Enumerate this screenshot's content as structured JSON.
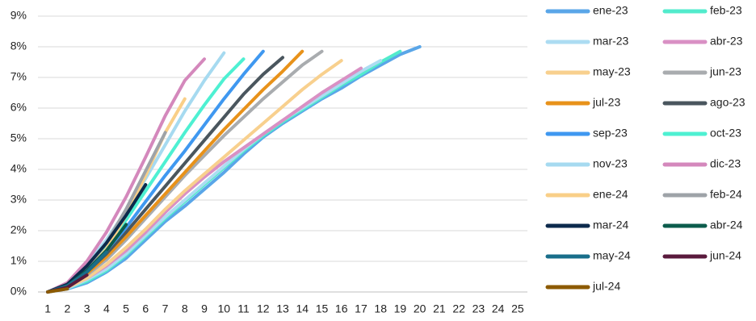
{
  "chart_data": {
    "type": "line",
    "categories": [
      1,
      2,
      3,
      4,
      5,
      6,
      7,
      8,
      9,
      10,
      11,
      12,
      13,
      14,
      15,
      16,
      17,
      18,
      19,
      20,
      21,
      22,
      23,
      24,
      25
    ],
    "ylim": [
      0,
      9
    ],
    "yticks": [
      {
        "value": 0,
        "label": "0%"
      },
      {
        "value": 1,
        "label": "1%"
      },
      {
        "value": 2,
        "label": "2%"
      },
      {
        "value": 3,
        "label": "3%"
      },
      {
        "value": 4,
        "label": "4%"
      },
      {
        "value": 5,
        "label": "5%"
      },
      {
        "value": 6,
        "label": "6%"
      },
      {
        "value": 7,
        "label": "7%"
      },
      {
        "value": 8,
        "label": "8%"
      },
      {
        "value": 9,
        "label": "9%"
      }
    ],
    "grid": true,
    "legend": "right",
    "series": [
      {
        "name": "ene-23",
        "color": "#5aa6e8",
        "values": [
          0,
          0.1,
          0.3,
          0.65,
          1.1,
          1.7,
          2.3,
          2.8,
          3.35,
          3.9,
          4.5,
          5.05,
          5.5,
          5.9,
          6.3,
          6.65,
          7.05,
          7.4,
          7.75,
          8.0,
          null,
          null,
          null,
          null,
          null
        ]
      },
      {
        "name": "feb-23",
        "color": "#52ebcc",
        "values": [
          0,
          0.12,
          0.35,
          0.7,
          1.2,
          1.8,
          2.4,
          2.95,
          3.5,
          4.05,
          4.6,
          5.1,
          5.55,
          5.95,
          6.35,
          6.75,
          7.1,
          7.5,
          7.85,
          null,
          null,
          null,
          null,
          null,
          null
        ]
      },
      {
        "name": "mar-23",
        "color": "#acdcf2",
        "values": [
          0,
          0.12,
          0.4,
          0.75,
          1.25,
          1.85,
          2.45,
          3.0,
          3.55,
          4.1,
          4.65,
          5.15,
          5.6,
          6.0,
          6.4,
          6.8,
          7.2,
          7.55,
          null,
          null,
          null,
          null,
          null,
          null,
          null
        ]
      },
      {
        "name": "abr-23",
        "color": "#d990c4",
        "values": [
          0,
          0.15,
          0.45,
          0.85,
          1.35,
          1.95,
          2.6,
          3.2,
          3.75,
          4.25,
          4.7,
          5.15,
          5.6,
          6.05,
          6.5,
          6.9,
          7.3,
          null,
          null,
          null,
          null,
          null,
          null,
          null,
          null
        ]
      },
      {
        "name": "may-23",
        "color": "#f8d08e",
        "values": [
          0,
          0.15,
          0.45,
          0.9,
          1.45,
          2.05,
          2.7,
          3.3,
          3.85,
          4.4,
          4.95,
          5.5,
          6.05,
          6.6,
          7.1,
          7.55,
          null,
          null,
          null,
          null,
          null,
          null,
          null,
          null,
          null
        ]
      },
      {
        "name": "jun-23",
        "color": "#a9acaf",
        "values": [
          0,
          0.2,
          0.55,
          1.05,
          1.7,
          2.4,
          3.1,
          3.8,
          4.45,
          5.1,
          5.7,
          6.3,
          6.85,
          7.4,
          7.85,
          null,
          null,
          null,
          null,
          null,
          null,
          null,
          null,
          null,
          null
        ]
      },
      {
        "name": "jul-23",
        "color": "#e8921a",
        "values": [
          0,
          0.2,
          0.6,
          1.15,
          1.8,
          2.5,
          3.2,
          3.9,
          4.6,
          5.3,
          5.95,
          6.6,
          7.2,
          7.85,
          null,
          null,
          null,
          null,
          null,
          null,
          null,
          null,
          null,
          null,
          null
        ]
      },
      {
        "name": "ago-23",
        "color": "#4a565e",
        "values": [
          0,
          0.2,
          0.65,
          1.25,
          1.95,
          2.7,
          3.45,
          4.2,
          4.95,
          5.7,
          6.45,
          7.1,
          7.65,
          null,
          null,
          null,
          null,
          null,
          null,
          null,
          null,
          null,
          null,
          null,
          null
        ]
      },
      {
        "name": "sep-23",
        "color": "#3f98f0",
        "values": [
          0,
          0.22,
          0.7,
          1.35,
          2.1,
          2.95,
          3.8,
          4.6,
          5.45,
          6.3,
          7.1,
          7.85,
          null,
          null,
          null,
          null,
          null,
          null,
          null,
          null,
          null,
          null,
          null,
          null,
          null
        ]
      },
      {
        "name": "oct-23",
        "color": "#4ef0d2",
        "values": [
          0,
          0.25,
          0.8,
          1.5,
          2.35,
          3.3,
          4.25,
          5.2,
          6.1,
          6.95,
          7.6,
          null,
          null,
          null,
          null,
          null,
          null,
          null,
          null,
          null,
          null,
          null,
          null,
          null,
          null
        ]
      },
      {
        "name": "nov-23",
        "color": "#a6daf0",
        "values": [
          0,
          0.28,
          0.9,
          1.7,
          2.65,
          3.7,
          4.8,
          5.9,
          6.9,
          7.8,
          null,
          null,
          null,
          null,
          null,
          null,
          null,
          null,
          null,
          null,
          null,
          null,
          null,
          null,
          null
        ]
      },
      {
        "name": "dic-23",
        "color": "#d488bc",
        "values": [
          0,
          0.3,
          1.0,
          1.95,
          3.1,
          4.4,
          5.75,
          6.9,
          7.6,
          null,
          null,
          null,
          null,
          null,
          null,
          null,
          null,
          null,
          null,
          null,
          null,
          null,
          null,
          null,
          null
        ]
      },
      {
        "name": "ene-24",
        "color": "#f9cf88",
        "values": [
          0,
          0.2,
          0.7,
          1.4,
          2.5,
          3.8,
          5.2,
          6.3,
          null,
          null,
          null,
          null,
          null,
          null,
          null,
          null,
          null,
          null,
          null,
          null,
          null,
          null,
          null,
          null,
          null
        ]
      },
      {
        "name": "feb-24",
        "color": "#9ea3a8",
        "values": [
          0,
          0.25,
          0.8,
          1.6,
          2.7,
          3.95,
          5.2,
          null,
          null,
          null,
          null,
          null,
          null,
          null,
          null,
          null,
          null,
          null,
          null,
          null,
          null,
          null,
          null,
          null,
          null
        ]
      },
      {
        "name": "mar-24",
        "color": "#0c2a4c",
        "values": [
          0,
          0.25,
          0.85,
          1.6,
          2.5,
          3.5,
          null,
          null,
          null,
          null,
          null,
          null,
          null,
          null,
          null,
          null,
          null,
          null,
          null,
          null,
          null,
          null,
          null,
          null,
          null
        ]
      },
      {
        "name": "abr-24",
        "color": "#0c5c4c",
        "values": [
          0,
          0.2,
          0.7,
          1.35,
          2.2,
          null,
          null,
          null,
          null,
          null,
          null,
          null,
          null,
          null,
          null,
          null,
          null,
          null,
          null,
          null,
          null,
          null,
          null,
          null,
          null
        ]
      },
      {
        "name": "may-24",
        "color": "#196e8a",
        "values": [
          0,
          0.2,
          0.65,
          1.3,
          null,
          null,
          null,
          null,
          null,
          null,
          null,
          null,
          null,
          null,
          null,
          null,
          null,
          null,
          null,
          null,
          null,
          null,
          null,
          null,
          null
        ]
      },
      {
        "name": "jun-24",
        "color": "#5a1a3c",
        "values": [
          0,
          0.15,
          0.55,
          null,
          null,
          null,
          null,
          null,
          null,
          null,
          null,
          null,
          null,
          null,
          null,
          null,
          null,
          null,
          null,
          null,
          null,
          null,
          null,
          null,
          null
        ]
      },
      {
        "name": "jul-24",
        "color": "#8c5a00",
        "values": [
          0,
          0.1,
          null,
          null,
          null,
          null,
          null,
          null,
          null,
          null,
          null,
          null,
          null,
          null,
          null,
          null,
          null,
          null,
          null,
          null,
          null,
          null,
          null,
          null,
          null
        ]
      }
    ]
  }
}
